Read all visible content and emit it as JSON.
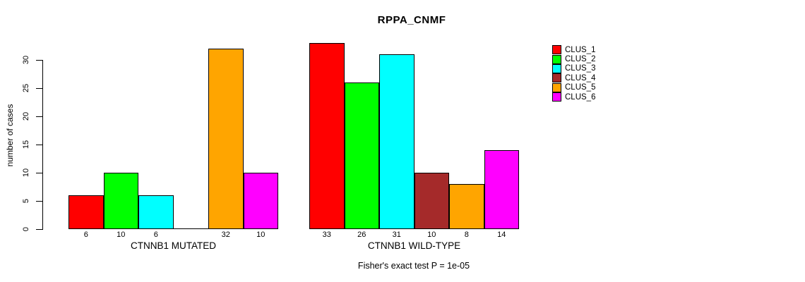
{
  "chart_data": {
    "type": "bar",
    "title": "RPPA_CNMF",
    "ylabel": "number of cases",
    "xlabel": "",
    "ylim": [
      0,
      33
    ],
    "y_ticks": [
      0,
      5,
      10,
      15,
      20,
      25,
      30
    ],
    "grid": false,
    "legend_position": "right",
    "legend": [
      "CLUS_1",
      "CLUS_2",
      "CLUS_3",
      "CLUS_4",
      "CLUS_5",
      "CLUS_6"
    ],
    "colors": [
      "#ff0000",
      "#00ff00",
      "#00ffff",
      "#a52a2a",
      "#ffa500",
      "#ff00ff"
    ],
    "categories": [
      "CTNNB1 MUTATED",
      "CTNNB1 WILD-TYPE"
    ],
    "groups": [
      {
        "label": "CTNNB1 MUTATED",
        "values": [
          6,
          10,
          6,
          0,
          32,
          10
        ]
      },
      {
        "label": "CTNNB1 WILD-TYPE",
        "values": [
          33,
          26,
          31,
          10,
          8,
          14
        ]
      }
    ],
    "annotation": "Fisher's exact test P = 1e-05"
  }
}
